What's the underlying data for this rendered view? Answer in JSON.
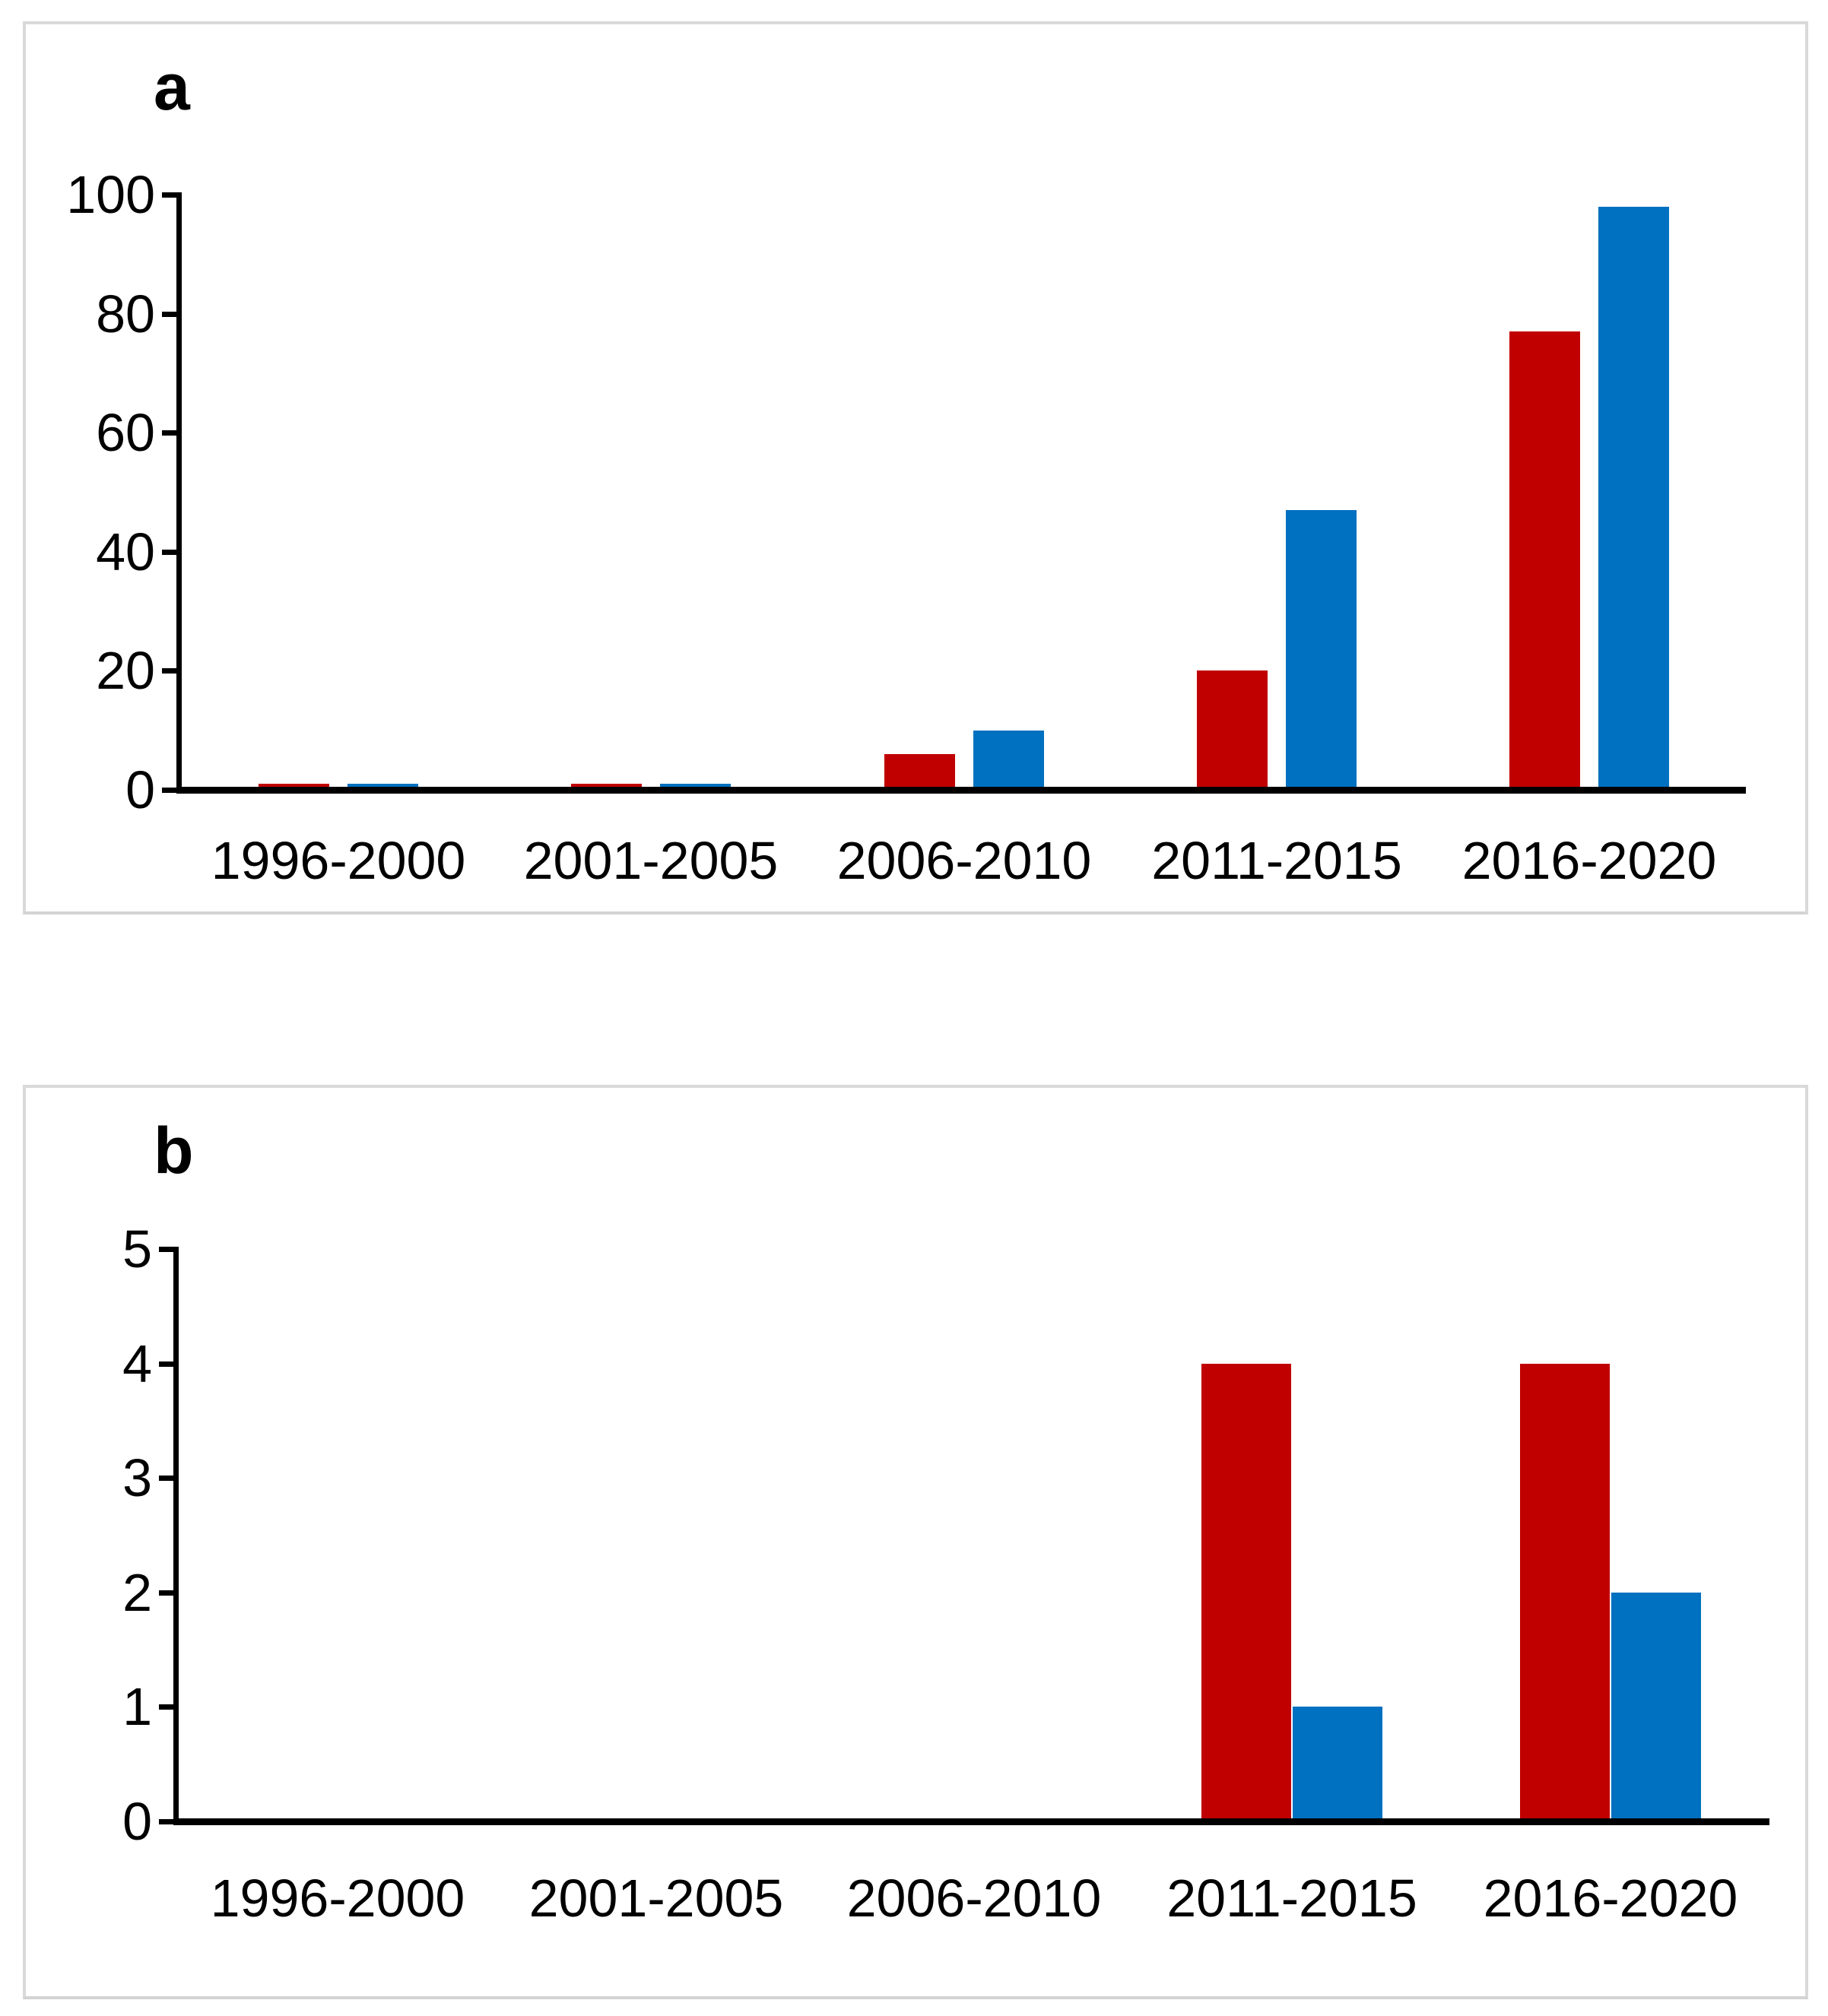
{
  "figure": {
    "panels": [
      {
        "label": "a",
        "chart_data": {
          "type": "bar",
          "categories": [
            "1996-2000",
            "2001-2005",
            "2006-2010",
            "2011-2015",
            "2016-2020"
          ],
          "series": [
            {
              "name": "red-series",
              "color": "#c00000",
              "values": [
                1,
                1,
                6,
                20,
                77
              ]
            },
            {
              "name": "blue-series",
              "color": "#0070c0",
              "values": [
                1,
                1,
                10,
                47,
                98
              ]
            }
          ],
          "title": "",
          "xlabel": "",
          "ylabel": "",
          "ylim": [
            0,
            100
          ],
          "yticks": [
            "0",
            "20",
            "40",
            "60",
            "80",
            "100"
          ],
          "grid": false,
          "legend": "none"
        }
      },
      {
        "label": "b",
        "chart_data": {
          "type": "bar",
          "categories": [
            "1996-2000",
            "2001-2005",
            "2006-2010",
            "2011-2015",
            "2016-2020"
          ],
          "series": [
            {
              "name": "red-series",
              "color": "#c00000",
              "values": [
                0,
                0,
                0,
                4,
                4
              ]
            },
            {
              "name": "blue-series",
              "color": "#0070c0",
              "values": [
                0,
                0,
                0,
                1,
                2
              ]
            }
          ],
          "title": "",
          "xlabel": "",
          "ylabel": "",
          "ylim": [
            0,
            5
          ],
          "yticks": [
            "0",
            "1",
            "2",
            "3",
            "4",
            "5"
          ],
          "grid": false,
          "legend": "none"
        }
      }
    ],
    "colors": {
      "red": "#c00000",
      "blue": "#0070c0",
      "axis": "#000000",
      "panel_border": "#d9d9d9",
      "background": "#ffffff"
    }
  }
}
